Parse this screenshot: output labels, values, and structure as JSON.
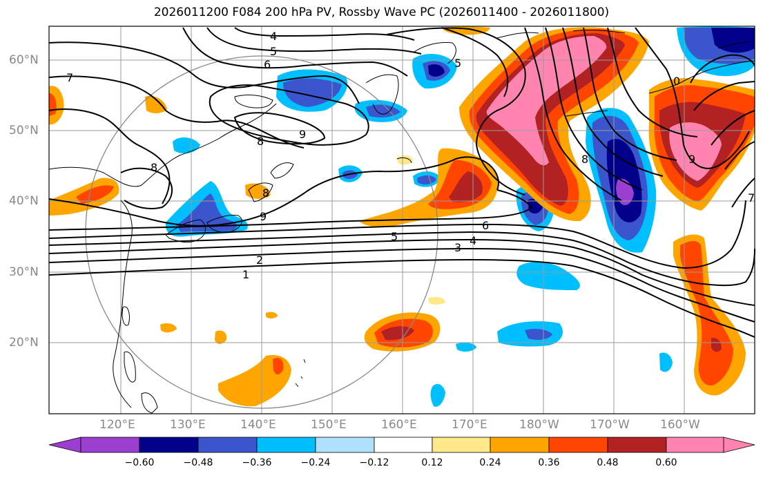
{
  "title": "2026011200 F084 200 hPa PV, Rossby Wave PC (2026011400 - 2026011800)",
  "lat_labels": [
    "60°N",
    "50°N",
    "40°N",
    "30°N",
    "20°N"
  ],
  "lon_labels": [
    "120°E",
    "130°E",
    "140°E",
    "150°E",
    "160°E",
    "170°E",
    "180°W",
    "170°W",
    "160°W"
  ],
  "contour_labels": [
    "4",
    "5",
    "6",
    "7",
    "5",
    "8",
    "9",
    "8",
    "9",
    "8",
    "6",
    "5",
    "4",
    "3",
    "2",
    "1",
    "8",
    "9",
    "0",
    "7"
  ],
  "colorbar": {
    "ticks": [
      "−0.60",
      "−0.48",
      "−0.36",
      "−0.24",
      "−0.12",
      "0.12",
      "0.24",
      "0.36",
      "0.48",
      "0.60"
    ],
    "colors": [
      "#9b3fd1",
      "#00008b",
      "#3b55cc",
      "#00bfff",
      "#b0e0ff",
      "#ffffff",
      "#ffe88a",
      "#ffa500",
      "#ff4500",
      "#b22222",
      "#ff85b0",
      "#ff85b0"
    ]
  },
  "colors": {
    "contour": "#000000",
    "grid": "#9a9a9a",
    "circle": "#888888"
  }
}
